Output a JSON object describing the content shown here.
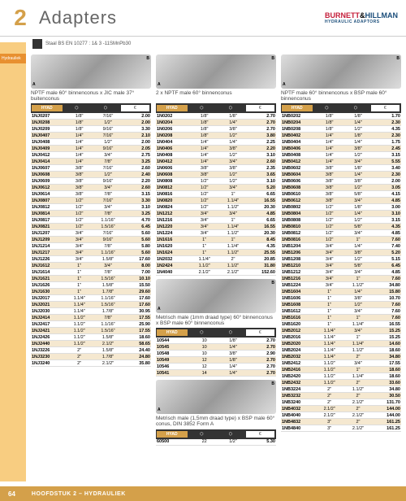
{
  "chapter": "2",
  "title": "Adapters",
  "material": "Staal BS EN 10277 : 1& 3 -11SMnPb30",
  "logo": {
    "brand1": "BURNETT",
    "amp": "&",
    "brand2": "HILLMAN",
    "sub": "HYDRAULIC ADAPTORS"
  },
  "sidebar": [
    "Hydrauliek"
  ],
  "footer": {
    "page": "64",
    "text": "HOOFDSTUK 2 – HYDRAULIEK"
  },
  "col_headers": {
    "code": "HYAD",
    "a": "A",
    "b": "B",
    "price": "€"
  },
  "sections": [
    {
      "title": "NPTF male 60° binnenconus x JIC male 37° buitenconus",
      "cols": [
        "code",
        "a",
        "b",
        "price"
      ],
      "rows": [
        [
          "1NJ0207",
          "1/8\"",
          "7/16\"",
          "2.00"
        ],
        [
          "1NJ0208",
          "1/8\"",
          "1/2\"",
          "2.00"
        ],
        [
          "1NJ0209",
          "1/8\"",
          "9/16\"",
          "3.30"
        ],
        [
          "1NJ0407",
          "1/4\"",
          "7/16\"",
          "2.10"
        ],
        [
          "1NJ0408",
          "1/4\"",
          "1/2\"",
          "2.00"
        ],
        [
          "1NJ0409",
          "1/4\"",
          "9/16\"",
          "2.05"
        ],
        [
          "1NJ0412",
          "1/4\"",
          "3/4\"",
          "2.75"
        ],
        [
          "1NJ0414",
          "1/4\"",
          "7/8\"",
          "3.25"
        ],
        [
          "1NJ0607",
          "3/8\"",
          "7/16\"",
          "2.60"
        ],
        [
          "1NJ0608",
          "3/8\"",
          "1/2\"",
          "2.40"
        ],
        [
          "1NJ0609",
          "3/8\"",
          "9/16\"",
          "2.20"
        ],
        [
          "1NJ0612",
          "3/8\"",
          "3/4\"",
          "2.60"
        ],
        [
          "1NJ0614",
          "3/8\"",
          "7/8\"",
          "3.15"
        ],
        [
          "1NJ0807",
          "1/2\"",
          "7/16\"",
          "3.30"
        ],
        [
          "1NJ0812",
          "1/2\"",
          "3/4\"",
          "3.10"
        ],
        [
          "1NJ0814",
          "1/2\"",
          "7/8\"",
          "3.25"
        ],
        [
          "1NJ0817",
          "1/2\"",
          "1.1/16\"",
          "4.70"
        ],
        [
          "1NJ0821",
          "1/2\"",
          "1.5/16\"",
          "6.45"
        ],
        [
          "1NJ1207",
          "3/4\"",
          "7/16\"",
          "5.60"
        ],
        [
          "1NJ1209",
          "3/4\"",
          "9/16\"",
          "5.60"
        ],
        [
          "1NJ1214",
          "3/4\"",
          "7/8\"",
          "5.80"
        ],
        [
          "1NJ1217",
          "3/4\"",
          "1.1/16\"",
          "5.60"
        ],
        [
          "1NJ1226",
          "3/4\"",
          "1.5/8\"",
          "17.60"
        ],
        [
          "1NJ1612",
          "1\"",
          "3/4\"",
          "8.00"
        ],
        [
          "1NJ1614",
          "1\"",
          "7/8\"",
          "7.00"
        ],
        [
          "1NJ1621",
          "1\"",
          "1.5/16\"",
          "10.10"
        ],
        [
          "1NJ1626",
          "1\"",
          "1.5/8\"",
          "15.50"
        ],
        [
          "1NJ1630",
          "1\"",
          "1.7/8\"",
          "29.60"
        ],
        [
          "1NJ2017",
          "1.1/4\"",
          "1.1/16\"",
          "17.60"
        ],
        [
          "1NJ2021",
          "1.1/4\"",
          "1.5/16\"",
          "17.60"
        ],
        [
          "1NJ2030",
          "1.1/4\"",
          "1.7/8\"",
          "30.95"
        ],
        [
          "1NJ2414",
          "1.1/2\"",
          "7/8\"",
          "17.55"
        ],
        [
          "1NJ2417",
          "1.1/2\"",
          "1.1/16\"",
          "25.90"
        ],
        [
          "1NJ2421",
          "1.1/2\"",
          "1.5/16\"",
          "17.55"
        ],
        [
          "1NJ2426",
          "1.1/2\"",
          "1.5/8\"",
          "18.60"
        ],
        [
          "1NJ2440",
          "1.1/2\"",
          "2.1/2\"",
          "58.65"
        ],
        [
          "1NJ3226",
          "2\"",
          "1.5/8\"",
          "24.40"
        ],
        [
          "1NJ3230",
          "2\"",
          "1.7/8\"",
          "24.80"
        ],
        [
          "1NJ3240",
          "2\"",
          "2.1/2\"",
          "35.80"
        ]
      ]
    },
    {
      "title": "2 x NPTF male 60° binnenconus",
      "cols": [
        "code",
        "a",
        "b",
        "price"
      ],
      "rows": [
        [
          "1N0202",
          "1/8\"",
          "1/8\"",
          "2.70"
        ],
        [
          "1N0204",
          "1/8\"",
          "1/4\"",
          "2.70"
        ],
        [
          "1N0206",
          "1/8\"",
          "3/8\"",
          "2.70"
        ],
        [
          "1N0208",
          "1/8\"",
          "1/2\"",
          "3.80"
        ],
        [
          "1N0404",
          "1/4\"",
          "1/4\"",
          "2.25"
        ],
        [
          "1N0406",
          "1/4\"",
          "3/8\"",
          "2.20"
        ],
        [
          "1N0408",
          "1/4\"",
          "1/2\"",
          "3.10"
        ],
        [
          "1N0412",
          "1/4\"",
          "3/4\"",
          "2.60"
        ],
        [
          "1N0606",
          "3/8\"",
          "3/8\"",
          "2.35"
        ],
        [
          "1N0608",
          "3/8\"",
          "1/2\"",
          "3.65"
        ],
        [
          "1N0808",
          "1/2\"",
          "1/2\"",
          "3.10"
        ],
        [
          "1N0812",
          "1/2\"",
          "3/4\"",
          "5.20"
        ],
        [
          "1N0816",
          "1/2\"",
          "1\"",
          "6.65"
        ],
        [
          "1N0820",
          "1/2\"",
          "1.1/4\"",
          "16.55"
        ],
        [
          "1N0824",
          "1/2\"",
          "1.1/2\"",
          "20.30"
        ],
        [
          "1N1212",
          "3/4\"",
          "3/4\"",
          "4.85"
        ],
        [
          "1N1216",
          "3/4\"",
          "1\"",
          "6.65"
        ],
        [
          "1N1220",
          "3/4\"",
          "1.1/4\"",
          "16.55"
        ],
        [
          "1N1224",
          "3/4\"",
          "1.1/2\"",
          "20.30"
        ],
        [
          "1N1616",
          "1\"",
          "1\"",
          "8.45"
        ],
        [
          "1N1620",
          "1\"",
          "1.1/4\"",
          "4.35"
        ],
        [
          "1N1624",
          "1\"",
          "1.1/2\"",
          "25.55"
        ],
        [
          "1N2032",
          "1.1/4\"",
          "2\"",
          "20.85"
        ],
        [
          "1N2424",
          "1.1/2\"",
          "1.1/2\"",
          "31.80"
        ],
        [
          "1N4040",
          "2.1/2\"",
          "2.1/2\"",
          "152.60"
        ]
      ]
    },
    {
      "title": "Metrisch male (1mm draad type) 60° binnenconus x BSP male 60° binnenconus",
      "cols": [
        "code",
        "a",
        "b",
        "price"
      ],
      "rows": [
        [
          "10544",
          "10",
          "1/8\"",
          "2.70"
        ],
        [
          "10545",
          "10",
          "1/4\"",
          "2.70"
        ],
        [
          "10548",
          "10",
          "3/8\"",
          "2.90"
        ],
        [
          "10549",
          "12",
          "1/8\"",
          "2.70"
        ],
        [
          "10546",
          "12",
          "1/4\"",
          "2.70"
        ],
        [
          "10541",
          "14",
          "1/4\"",
          "2.70"
        ]
      ]
    },
    {
      "title": "Metrisch male (1,5mm draad type) x BSP male 60° conus, DIN 3852 Form A",
      "cols": [
        "code",
        "a",
        "b",
        "price"
      ],
      "rows": [
        [
          "60500",
          "22",
          "1/2\"",
          "5.30"
        ]
      ]
    },
    {
      "title": "NPTF male 60° binnenconus x BSP male 60° binnenconus",
      "cols": [
        "code",
        "a",
        "b",
        "price"
      ],
      "rows": [
        [
          "1NB0202",
          "1/8\"",
          "1/8\"",
          "1.70"
        ],
        [
          "1NB0204",
          "1/8\"",
          "1/4\"",
          "2.30"
        ],
        [
          "1NB0208",
          "1/8\"",
          "1/2\"",
          "4.35"
        ],
        [
          "1NB0402",
          "1/4\"",
          "1/8\"",
          "2.30"
        ],
        [
          "1NB0404",
          "1/4\"",
          "1/4\"",
          "1.75"
        ],
        [
          "1NB0406",
          "1/4\"",
          "3/8\"",
          "2.45"
        ],
        [
          "1NB0408",
          "1/4\"",
          "1/2\"",
          "3.15"
        ],
        [
          "1NB0412",
          "1/4\"",
          "3/4\"",
          "5.55"
        ],
        [
          "1NB0602",
          "3/8\"",
          "1/8\"",
          "3.40"
        ],
        [
          "1NB0604",
          "3/8\"",
          "1/4\"",
          "2.30"
        ],
        [
          "1NB0606",
          "3/8\"",
          "3/8\"",
          "2.00"
        ],
        [
          "1NB0608",
          "3/8\"",
          "1/2\"",
          "3.05"
        ],
        [
          "1NB0610",
          "3/8\"",
          "5/8\"",
          "4.15"
        ],
        [
          "1NB0612",
          "3/8\"",
          "3/4\"",
          "4.85"
        ],
        [
          "1NB0802",
          "1/2\"",
          "1/8\"",
          "3.00"
        ],
        [
          "1NB0804",
          "1/2\"",
          "1/4\"",
          "3.10"
        ],
        [
          "1NB0808",
          "1/2\"",
          "1/2\"",
          "3.15"
        ],
        [
          "1NB0810",
          "1/2\"",
          "5/8\"",
          "4.35"
        ],
        [
          "1NB0812",
          "1/2\"",
          "3/4\"",
          "4.85"
        ],
        [
          "1NB0816",
          "1/2\"",
          "1\"",
          "7.60"
        ],
        [
          "1NB1204",
          "3/4\"",
          "1/4\"",
          "7.40"
        ],
        [
          "1NB1206",
          "3/4\"",
          "3/8\"",
          "5.20"
        ],
        [
          "1NB1208",
          "3/4\"",
          "1/2\"",
          "5.15"
        ],
        [
          "1NB1210",
          "3/4\"",
          "5/8\"",
          "6.45"
        ],
        [
          "1NB1212",
          "3/4\"",
          "3/4\"",
          "4.85"
        ],
        [
          "1NB1216",
          "3/4\"",
          "1\"",
          "7.60"
        ],
        [
          "1NB1224",
          "3/4\"",
          "1.1/2\"",
          "34.80"
        ],
        [
          "1NB1604",
          "1\"",
          "1/4\"",
          "15.80"
        ],
        [
          "1NB1606",
          "1\"",
          "3/8\"",
          "10.70"
        ],
        [
          "1NB1608",
          "1\"",
          "1/2\"",
          "7.60"
        ],
        [
          "1NB1612",
          "1\"",
          "3/4\"",
          "7.60"
        ],
        [
          "1NB1616",
          "1\"",
          "1\"",
          "7.60"
        ],
        [
          "1NB1620",
          "1\"",
          "1.1/4\"",
          "16.55"
        ],
        [
          "1NB2012",
          "1.1/4\"",
          "3/4\"",
          "15.25"
        ],
        [
          "1NB2016",
          "1.1/4\"",
          "1\"",
          "15.25"
        ],
        [
          "1NB2020",
          "1.1/4\"",
          "1.1/4\"",
          "14.60"
        ],
        [
          "1NB2024",
          "1.1/4\"",
          "1.1/2\"",
          "18.60"
        ],
        [
          "1NB2032",
          "1.1/4\"",
          "2\"",
          "34.80"
        ],
        [
          "1NB2412",
          "1.1/2\"",
          "3/4\"",
          "17.55"
        ],
        [
          "1NB2416",
          "1.1/2\"",
          "1\"",
          "18.60"
        ],
        [
          "1NB2420",
          "1.1/2\"",
          "1.1/4\"",
          "18.60"
        ],
        [
          "1NB2432",
          "1.1/2\"",
          "2\"",
          "33.60"
        ],
        [
          "1NB3224",
          "2\"",
          "1.1/2\"",
          "34.80"
        ],
        [
          "1NB3232",
          "2\"",
          "2\"",
          "30.50"
        ],
        [
          "1NB3240",
          "2\"",
          "2.1/2\"",
          "131.70"
        ],
        [
          "1NB4032",
          "2.1/2\"",
          "2\"",
          "144.00"
        ],
        [
          "1NB4040",
          "2.1/2\"",
          "2.1/2\"",
          "144.00"
        ],
        [
          "1NB4832",
          "3\"",
          "2\"",
          "161.25"
        ],
        [
          "1NB4840",
          "3\"",
          "2.1/2\"",
          "161.25"
        ]
      ]
    }
  ]
}
